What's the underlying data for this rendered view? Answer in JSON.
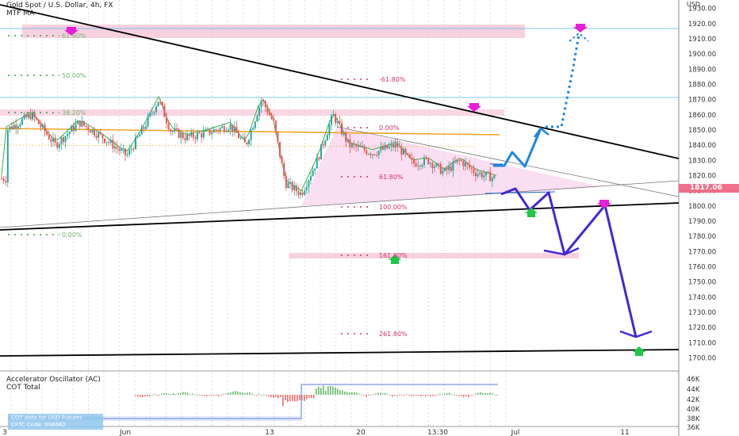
{
  "header": {
    "symbol_title": "Gold Spot / U.S. Dollar, 4h, FX",
    "indicator": "MTF MA"
  },
  "currency_label": "USD",
  "price": {
    "last": "1817.06",
    "last_value": 1817.06,
    "scale_min": 1695,
    "scale_max": 1935,
    "colors": {
      "up": "#26a69a",
      "down": "#ef5350",
      "last_bg": "#f06f8a"
    }
  },
  "y_ticks": [
    "1930.00",
    "1920.00",
    "1910.00",
    "1900.00",
    "1890.00",
    "1880.00",
    "1870.00",
    "1860.00",
    "1850.00",
    "1840.00",
    "1830.00",
    "1820.00",
    "1810.00",
    "1800.00",
    "1790.00",
    "1780.00",
    "1770.00",
    "1760.00",
    "1750.00",
    "1740.00",
    "1730.00",
    "1720.00",
    "1710.00",
    "1700.00"
  ],
  "x_ticks": [
    "3",
    "Jun",
    "13",
    "20",
    "13:30",
    "Jul",
    "11"
  ],
  "fib_left": [
    "61.80%",
    "50.00%",
    "38.20%",
    "0.00%"
  ],
  "fib_mid": [
    "-61.80%",
    "0.00%",
    "61.80%",
    "100.00%",
    "161.80%",
    "261.80%"
  ],
  "oscillator": {
    "title": "Accelerator Oscillator (AC)",
    "subtitle": "COT Total",
    "y_ticks": [
      "46K",
      "44K",
      "42K",
      "40K",
      "38K",
      "36K"
    ],
    "note_line1": "COT data for USD Futures",
    "note_line2": "CFTC Code: 098662"
  },
  "chart_data": {
    "type": "candlestick",
    "title": "Gold Spot / U.S. Dollar, 4h, FX",
    "ylabel": "USD",
    "ylim": [
      1695,
      1935
    ],
    "key_levels": [
      1921,
      1876,
      1858,
      1817.06,
      1805,
      1710
    ],
    "fib_retracement_left": [
      "61.80%",
      "50.00%",
      "38.20%",
      "0.00%"
    ],
    "fib_extension": [
      "-61.80%",
      "0.00%",
      "61.80%",
      "100.00%",
      "161.80%",
      "261.80%"
    ],
    "projected_paths": [
      {
        "name": "bullish",
        "points": [
          1830,
          1842,
          1834,
          1856,
          1921
        ]
      },
      {
        "name": "bearish",
        "points": [
          1818,
          1804,
          1813,
          1772,
          1806,
          1722
        ]
      }
    ]
  }
}
